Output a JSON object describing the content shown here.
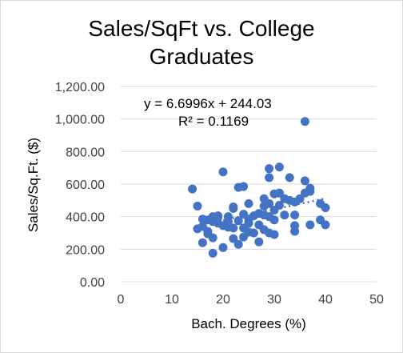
{
  "chart_data": {
    "type": "scatter",
    "title_lines": [
      "Sales/SqFt vs. College",
      "Graduates"
    ],
    "xlabel": "Bach. Degrees (%)",
    "ylabel": "Sales/Sq.Ft. ($)",
    "xlim": [
      0,
      50
    ],
    "ylim": [
      0,
      1200
    ],
    "x_ticks": [
      "0",
      "10",
      "20",
      "30",
      "40",
      "50"
    ],
    "y_ticks": [
      "0.00",
      "200.00",
      "400.00",
      "600.00",
      "800.00",
      "1,000.00",
      "1,200.00"
    ],
    "grid": "horizontal",
    "legend": "none",
    "trendline": {
      "type": "linear",
      "slope": 6.6996,
      "intercept": 244.03,
      "equation_text": "y = 6.6996x + 244.03",
      "r2_text": "R² = 0.1169",
      "x_range": [
        14.5,
        40
      ]
    },
    "colors": {
      "point": "#4472c4",
      "trend": "#4472c4",
      "grid": "#d9d9d9"
    },
    "points": [
      [
        14,
        570
      ],
      [
        15,
        465
      ],
      [
        15,
        325
      ],
      [
        16,
        385
      ],
      [
        16,
        340
      ],
      [
        16,
        240
      ],
      [
        17,
        380
      ],
      [
        17,
        310
      ],
      [
        17,
        295
      ],
      [
        18,
        370
      ],
      [
        18,
        175
      ],
      [
        18,
        400
      ],
      [
        18,
        270
      ],
      [
        19,
        395
      ],
      [
        19,
        360
      ],
      [
        19,
        405
      ],
      [
        20,
        345
      ],
      [
        20,
        675
      ],
      [
        20,
        210
      ],
      [
        21,
        400
      ],
      [
        21,
        335
      ],
      [
        21,
        370
      ],
      [
        22,
        450
      ],
      [
        22,
        460
      ],
      [
        22,
        265
      ],
      [
        22,
        330
      ],
      [
        23,
        580
      ],
      [
        23,
        375
      ],
      [
        23,
        230
      ],
      [
        24,
        585
      ],
      [
        24,
        415
      ],
      [
        24,
        330
      ],
      [
        24,
        275
      ],
      [
        25,
        480
      ],
      [
        25,
        385
      ],
      [
        25,
        360
      ],
      [
        25,
        305
      ],
      [
        26,
        405
      ],
      [
        26,
        300
      ],
      [
        27,
        420
      ],
      [
        27,
        350
      ],
      [
        27,
        245
      ],
      [
        28,
        510
      ],
      [
        28,
        465
      ],
      [
        28,
        410
      ],
      [
        28,
        320
      ],
      [
        29,
        695
      ],
      [
        29,
        640
      ],
      [
        29,
        480
      ],
      [
        29,
        400
      ],
      [
        29,
        300
      ],
      [
        30,
        540
      ],
      [
        30,
        440
      ],
      [
        30,
        380
      ],
      [
        30,
        290
      ],
      [
        31,
        705
      ],
      [
        31,
        545
      ],
      [
        31,
        470
      ],
      [
        32,
        510
      ],
      [
        32,
        410
      ],
      [
        33,
        640
      ],
      [
        33,
        500
      ],
      [
        34,
        490
      ],
      [
        34,
        410
      ],
      [
        34,
        310
      ],
      [
        34,
        345
      ],
      [
        35,
        510
      ],
      [
        36,
        985
      ],
      [
        36,
        620
      ],
      [
        36,
        545
      ],
      [
        37,
        575
      ],
      [
        37,
        555
      ],
      [
        37,
        350
      ],
      [
        39,
        480
      ],
      [
        39,
        380
      ],
      [
        40,
        455
      ],
      [
        40,
        350
      ]
    ]
  }
}
